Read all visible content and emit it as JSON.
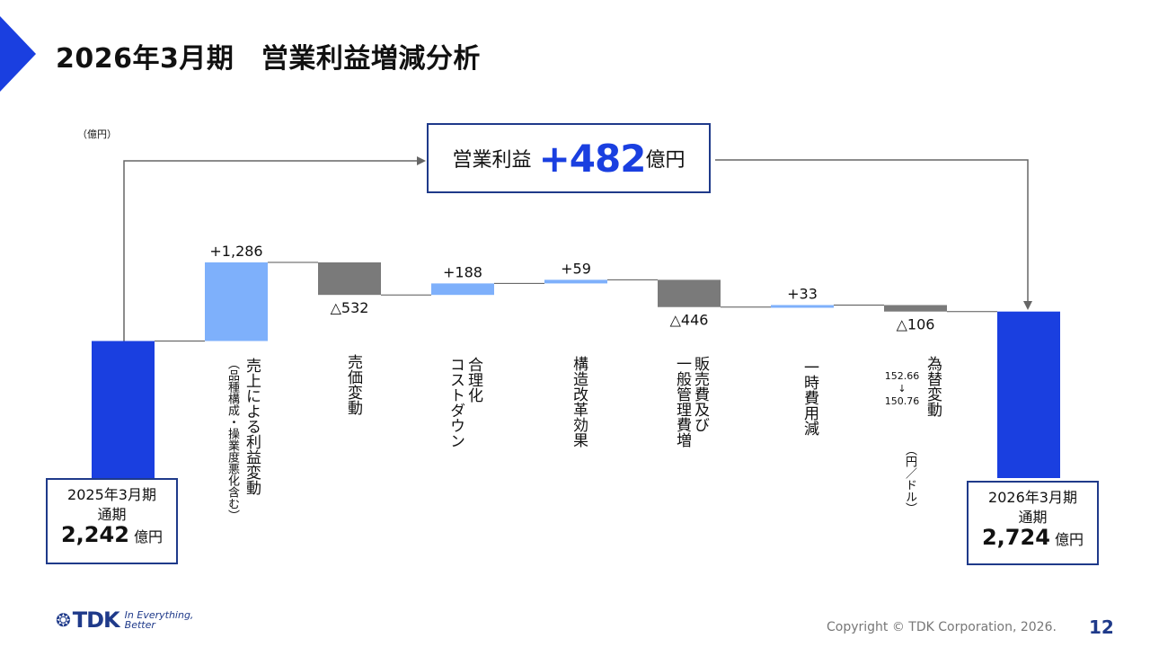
{
  "title": "2026年3月期　営業利益増減分析",
  "unit_label": "（億円）",
  "summary": {
    "label": "営業利益",
    "value": "+482",
    "unit": "億円"
  },
  "start_box": {
    "line1": "2025年3月期",
    "line2": "通期",
    "value": "2,242",
    "unit": " 億円"
  },
  "end_box": {
    "line1": "2026年3月期",
    "line2": "通期",
    "value": "2,724",
    "unit": " 億円"
  },
  "categories": [
    {
      "label": "売上による利益変動",
      "sub": "（品種構成・操業度悪化含む）"
    },
    {
      "label": "売価変動",
      "sub": ""
    },
    {
      "label": "合理化\nコストダウン",
      "sub": ""
    },
    {
      "label": "構造改革効果",
      "sub": ""
    },
    {
      "label": "販売費及び\n一般管理費増",
      "sub": ""
    },
    {
      "label": "一時費用減",
      "sub": ""
    },
    {
      "label": "為替変動",
      "sub": "（円／ドル）"
    }
  ],
  "rate_note": {
    "from": "152.66",
    "arrow": "↓",
    "to": "150.76"
  },
  "chart_data": {
    "type": "bar",
    "subtype": "waterfall",
    "start": {
      "label": "2025年3月期 通期",
      "value": 2242
    },
    "end": {
      "label": "2026年3月期 通期",
      "value": 2724
    },
    "steps": [
      {
        "category": "売上による利益変動",
        "value": 1286,
        "display": "+1,286"
      },
      {
        "category": "売価変動",
        "value": -532,
        "display": "△532"
      },
      {
        "category": "合理化コストダウン",
        "value": 188,
        "display": "+188"
      },
      {
        "category": "構造改革効果",
        "value": 59,
        "display": "+59"
      },
      {
        "category": "販売費及び一般管理費増",
        "value": -446,
        "display": "△446"
      },
      {
        "category": "一時費用減",
        "value": 33,
        "display": "+33"
      },
      {
        "category": "為替変動",
        "value": -106,
        "display": "△106"
      }
    ],
    "total_change": 482
  },
  "colors": {
    "total": "#1a3fe0",
    "increase": "#7eb0fb",
    "decrease": "#7a7a7a",
    "accent": "#1f3a8a"
  },
  "footer": {
    "logo_text": "TDK",
    "logo_tag_line1": "In Everything,",
    "logo_tag_line2": "Better",
    "copyright": "Copyright  © TDK Corporation, 2026.",
    "page": "12"
  }
}
